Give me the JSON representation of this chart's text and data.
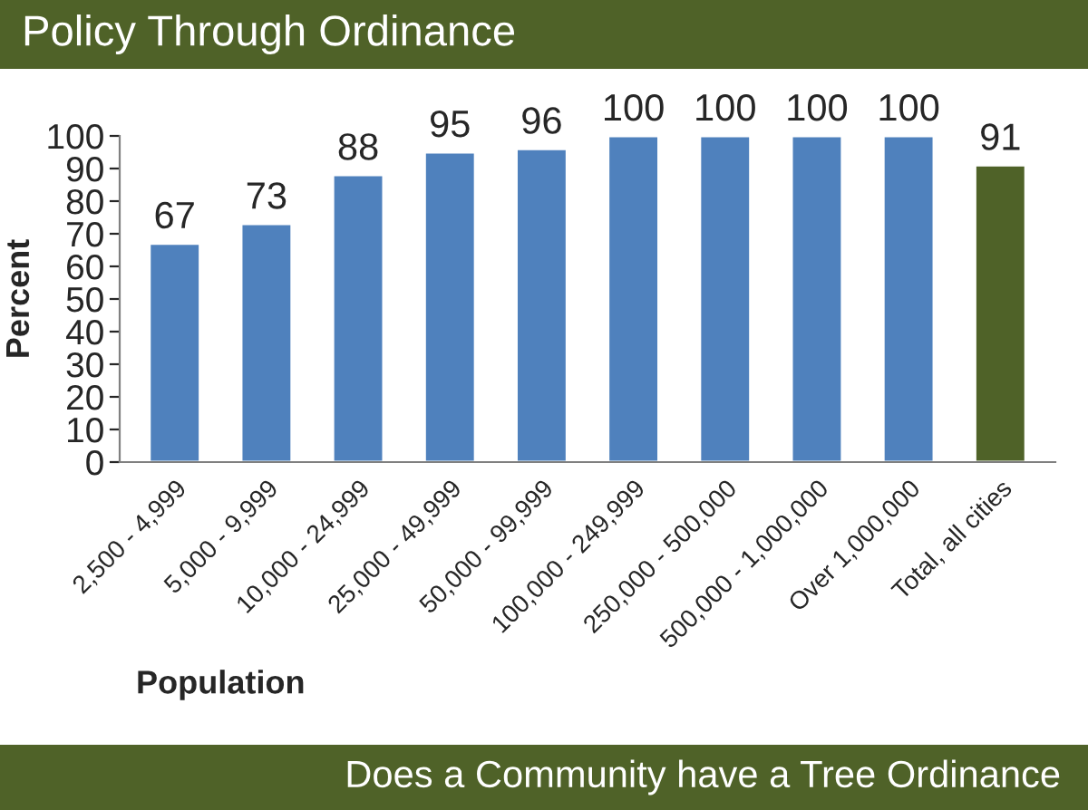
{
  "chart_data": {
    "type": "bar",
    "title": "Policy Through Ordinance",
    "xlabel": "Population",
    "ylabel": "Percent",
    "categories": [
      "2,500 - 4,999",
      "5,000 - 9,999",
      "10,000 - 24,999",
      "25,000 - 49,999",
      "50,000 - 99,999",
      "100,000 - 249,999",
      "250,000 - 500,000",
      "500,000 - 1,000,000",
      "Over 1,000,000",
      "Total, all cities"
    ],
    "values": [
      67,
      73,
      88,
      95,
      96,
      100,
      100,
      100,
      100,
      91
    ],
    "colors": [
      "#4f81bd",
      "#4f81bd",
      "#4f81bd",
      "#4f81bd",
      "#4f81bd",
      "#4f81bd",
      "#4f81bd",
      "#4f81bd",
      "#4f81bd",
      "#4f6228"
    ],
    "ylim": [
      0,
      100
    ],
    "yticks": [
      0,
      10,
      20,
      30,
      40,
      50,
      60,
      70,
      80,
      90,
      100
    ],
    "data_labels": true,
    "grid": false,
    "annotations": [
      "Does a Community have a Tree Ordinance"
    ]
  }
}
